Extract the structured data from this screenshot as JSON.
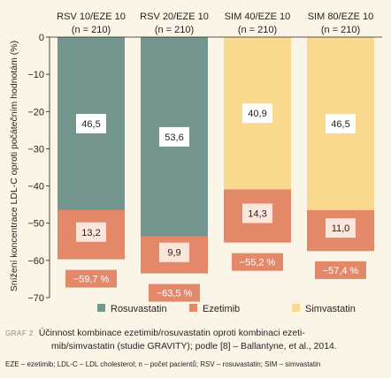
{
  "chart_data": {
    "type": "bar",
    "stacked": true,
    "ylabel": "Snížení koncentrace LDL-C oproti počátečním hodnotám (%)",
    "ylim": [
      -70,
      0
    ],
    "yticks": [
      0,
      -10,
      -20,
      -30,
      -40,
      -50,
      -60,
      -70
    ],
    "grid": false,
    "legend_position": "bottom",
    "categories": [
      {
        "name": "RSV 10/EZE 10",
        "n": "(n = 210)"
      },
      {
        "name": "RSV 20/EZE 10",
        "n": "(n = 210)"
      },
      {
        "name": "SIM 40/EZE 10",
        "n": "(n = 210)"
      },
      {
        "name": "SIM 80/EZE 10",
        "n": "(n = 210)"
      }
    ],
    "series": [
      {
        "name": "Rosuvastatin",
        "color": "#74968f",
        "values": [
          -46.5,
          -53.6,
          null,
          null
        ],
        "labels": [
          "46,5",
          "53,6",
          "",
          ""
        ]
      },
      {
        "name": "Simvastatin",
        "color": "#f8d98e",
        "values": [
          null,
          null,
          -40.9,
          -46.5
        ],
        "labels": [
          "",
          "",
          "40,9",
          "46,5"
        ]
      },
      {
        "name": "Ezetimib",
        "color": "#e4886a",
        "values": [
          -13.2,
          -9.9,
          -14.3,
          -11.0
        ],
        "labels": [
          "13,2",
          "9,9",
          "14,3",
          "11,0"
        ]
      }
    ],
    "totals": [
      -59.7,
      -63.5,
      -55.2,
      -57.4
    ],
    "total_labels": [
      "−59,7 %",
      "−63,5 %",
      "−55,2 %",
      "−57,4 %"
    ],
    "legend": [
      {
        "name": "Rosuvastatin",
        "color": "#74968f"
      },
      {
        "name": "Ezetimib",
        "color": "#e4886a"
      },
      {
        "name": "Simvastatin",
        "color": "#f8d98e"
      }
    ]
  },
  "caption": {
    "tag": "GRAF 2",
    "line1": "Účinnost kombinace ezetimib/rosuvastatin oproti kombinaci ezeti-",
    "line2": "mib/simvastatin (studie GRAVITY); podle [8] – Ballantyne, et al., 2014.",
    "abbreviations": "EZE – ezetimib; LDL-C – LDL cholesterol; n – počet pacientů; RSV – rosuvastatin; SIM – simvastatin"
  }
}
